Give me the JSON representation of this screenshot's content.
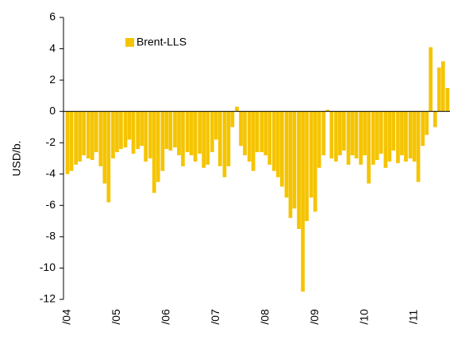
{
  "chart_data": {
    "type": "bar",
    "y_label": "USD/b.",
    "series": [
      {
        "name": "Brent-LLS",
        "color": "#f5c400",
        "x": [
          2004.0,
          2004.08,
          2004.17,
          2004.25,
          2004.33,
          2004.42,
          2004.5,
          2004.58,
          2004.67,
          2004.75,
          2004.83,
          2004.92,
          2005.0,
          2005.08,
          2005.17,
          2005.25,
          2005.33,
          2005.42,
          2005.5,
          2005.58,
          2005.67,
          2005.75,
          2005.83,
          2005.92,
          2006.0,
          2006.08,
          2006.17,
          2006.25,
          2006.33,
          2006.42,
          2006.5,
          2006.58,
          2006.67,
          2006.75,
          2006.83,
          2006.92,
          2007.0,
          2007.08,
          2007.17,
          2007.25,
          2007.33,
          2007.42,
          2007.5,
          2007.58,
          2007.67,
          2007.75,
          2007.83,
          2007.92,
          2008.0,
          2008.08,
          2008.17,
          2008.25,
          2008.33,
          2008.42,
          2008.5,
          2008.58,
          2008.67,
          2008.75,
          2008.83,
          2008.92,
          2009.0,
          2009.08,
          2009.17,
          2009.25,
          2009.33,
          2009.42,
          2009.5,
          2009.58,
          2009.67,
          2009.75,
          2009.83,
          2009.92,
          2010.0,
          2010.08,
          2010.17,
          2010.25,
          2010.33,
          2010.42,
          2010.5,
          2010.58,
          2010.67,
          2010.75,
          2010.83,
          2010.92,
          2011.0,
          2011.08,
          2011.17,
          2011.25,
          2011.33,
          2011.42,
          2011.5,
          2011.58,
          2011.67
        ],
        "values": [
          -4,
          -3.8,
          -3.4,
          -3.2,
          -2.8,
          -3,
          -3.1,
          -2.6,
          -3.5,
          -4.6,
          -5.8,
          -3,
          -2.6,
          -2.4,
          -2.3,
          -1.8,
          -2.7,
          -2.4,
          -2.2,
          -3.2,
          -3,
          -5.2,
          -4.5,
          -3.8,
          -2.4,
          -2.5,
          -2.3,
          -2.8,
          -3.5,
          -2.6,
          -2.8,
          -3.2,
          -2.7,
          -3.6,
          -3.4,
          -2.6,
          -1.8,
          -3.5,
          -4.2,
          -3.5,
          -1,
          0.3,
          -2.2,
          -2.8,
          -3.2,
          -3.8,
          -2.6,
          -2.6,
          -2.8,
          -3.4,
          -3.8,
          -4.2,
          -4.8,
          -5.5,
          -6.8,
          -6.2,
          -7.5,
          -11.5,
          -7,
          -5.5,
          -6.4,
          -3.6,
          -2.8,
          0.1,
          -3,
          -3.2,
          -2.8,
          -2.5,
          -3.4,
          -2.8,
          -3,
          -3.4,
          -2.8,
          -4.6,
          -3.4,
          -3.1,
          -2.7,
          -3.6,
          -3.2,
          -2.5,
          -3.3,
          -2.8,
          -3.2,
          -3,
          -3.2,
          -4.5,
          -2.2,
          -1.5,
          4.1,
          -1,
          2.8,
          3.2,
          1.5
        ]
      }
    ],
    "xlim": [
      2003.92,
      2011.72
    ],
    "xticks": [
      {
        "value": 2004,
        "label": "/04"
      },
      {
        "value": 2005,
        "label": "/05"
      },
      {
        "value": 2006,
        "label": "/06"
      },
      {
        "value": 2007,
        "label": "/07"
      },
      {
        "value": 2008,
        "label": "/08"
      },
      {
        "value": 2009,
        "label": "/09"
      },
      {
        "value": 2010,
        "label": "/10"
      },
      {
        "value": 2011,
        "label": "/11"
      }
    ],
    "ylim": [
      -12,
      6
    ],
    "yticks": [
      -12,
      -10,
      -8,
      -6,
      -4,
      -2,
      0,
      2,
      4,
      6
    ],
    "legend_position": "upper left"
  }
}
